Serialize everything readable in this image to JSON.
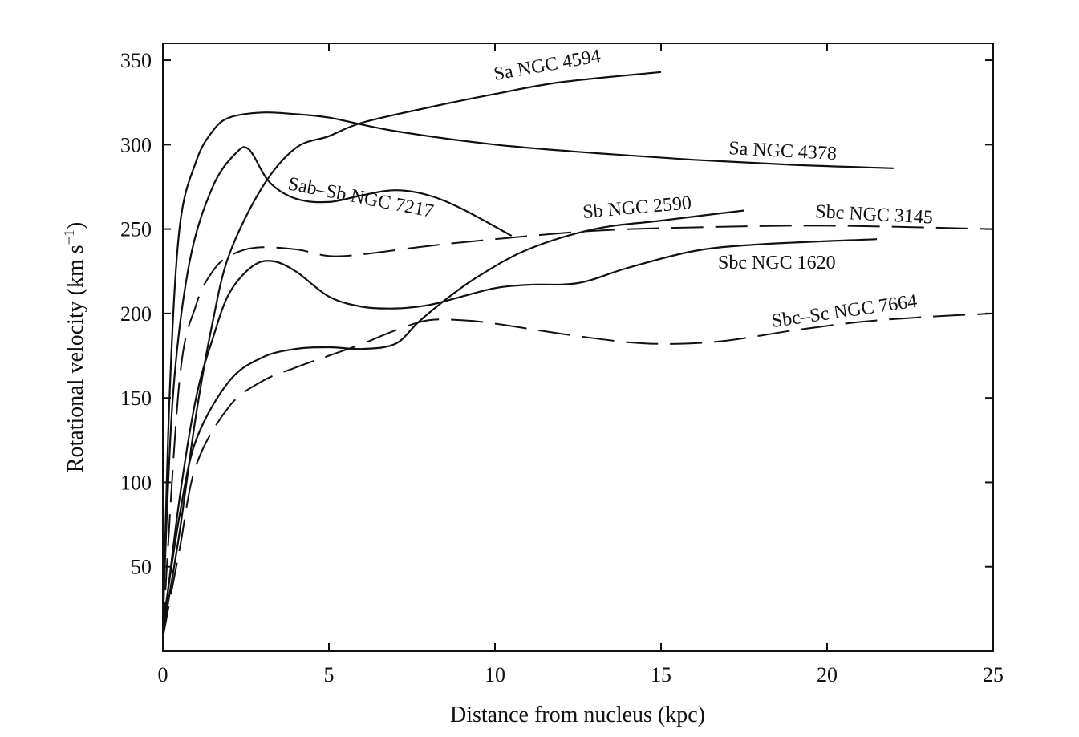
{
  "chart_data": {
    "type": "line",
    "title": "",
    "xlabel": "Distance from nucleus (kpc)",
    "ylabel": "Rotational velocity (km s",
    "ylabel_sup": "−1",
    "ylabel_close": ")",
    "xlim": [
      0,
      25
    ],
    "ylim": [
      0,
      360
    ],
    "xticks": [
      0,
      5,
      10,
      15,
      20,
      25
    ],
    "xtick_labels": [
      "0",
      "5",
      "10",
      "15",
      "20",
      "25"
    ],
    "yticks": [
      50,
      100,
      150,
      200,
      250,
      300,
      350
    ],
    "ytick_labels": [
      "50",
      "100",
      "150",
      "200",
      "250",
      "300",
      "350"
    ],
    "grid": false,
    "legend": "none",
    "series": [
      {
        "name": "Sa NGC 4594",
        "line_style": "solid",
        "x": [
          0,
          0.5,
          1,
          1.5,
          2,
          3,
          4,
          5,
          6,
          8,
          10,
          12,
          15
        ],
        "y": [
          10,
          70,
          140,
          195,
          235,
          275,
          298,
          305,
          313,
          322,
          330,
          337,
          343
        ]
      },
      {
        "name": "Sa NGC 4378",
        "line_style": "solid",
        "x": [
          0,
          0.2,
          0.5,
          1,
          1.5,
          2,
          3,
          4,
          5,
          7,
          10,
          13,
          16,
          19,
          22
        ],
        "y": [
          10,
          150,
          250,
          290,
          308,
          316,
          319,
          318,
          316,
          308,
          300,
          295,
          291,
          288,
          286
        ]
      },
      {
        "name": "Sab–Sb NGC 7217",
        "line_style": "solid",
        "x": [
          0,
          0.3,
          0.8,
          1.5,
          2.2,
          2.6,
          3.2,
          4,
          5,
          6,
          7,
          8,
          9,
          10.5
        ],
        "y": [
          20,
          150,
          230,
          275,
          295,
          297,
          278,
          268,
          266,
          270,
          273,
          270,
          262,
          246
        ]
      },
      {
        "name": "Sb NGC 2590",
        "line_style": "solid",
        "x": [
          0,
          0.5,
          1,
          2,
          3,
          4,
          5,
          6,
          7,
          7.7,
          8.5,
          9.5,
          11,
          13,
          15,
          17.5
        ],
        "y": [
          15,
          80,
          125,
          160,
          174,
          179,
          180,
          179,
          182,
          195,
          208,
          222,
          238,
          250,
          255,
          261
        ]
      },
      {
        "name": "Sbc NGC 3145",
        "line_style": "dashed",
        "x": [
          0,
          0.5,
          1,
          1.5,
          2,
          2.8,
          4,
          5,
          6,
          8,
          10,
          13,
          16,
          20,
          25
        ],
        "y": [
          10,
          160,
          205,
          225,
          234,
          239,
          238,
          234,
          235,
          240,
          244,
          249,
          251,
          252,
          250
        ]
      },
      {
        "name": "Sbc NGC 1620",
        "line_style": "solid",
        "x": [
          0,
          0.5,
          1,
          1.5,
          2,
          2.7,
          3.3,
          4,
          5,
          6,
          7,
          8,
          9,
          10,
          11,
          12.5,
          14,
          16,
          18,
          21.5
        ],
        "y": [
          10,
          90,
          150,
          185,
          212,
          228,
          231,
          225,
          210,
          204,
          203,
          205,
          210,
          215,
          217,
          218,
          227,
          237,
          241,
          244
        ]
      },
      {
        "name": "Sbc–Sc NGC 7664",
        "line_style": "dashed",
        "x": [
          0,
          0.5,
          1,
          2,
          3,
          4,
          5,
          6,
          7,
          8,
          9,
          10,
          12,
          14,
          15.5,
          17,
          19,
          21,
          23,
          25
        ],
        "y": [
          8,
          60,
          110,
          145,
          160,
          168,
          175,
          182,
          190,
          196,
          196,
          194,
          188,
          183,
          182,
          184,
          190,
          195,
          198,
          200
        ]
      }
    ]
  }
}
